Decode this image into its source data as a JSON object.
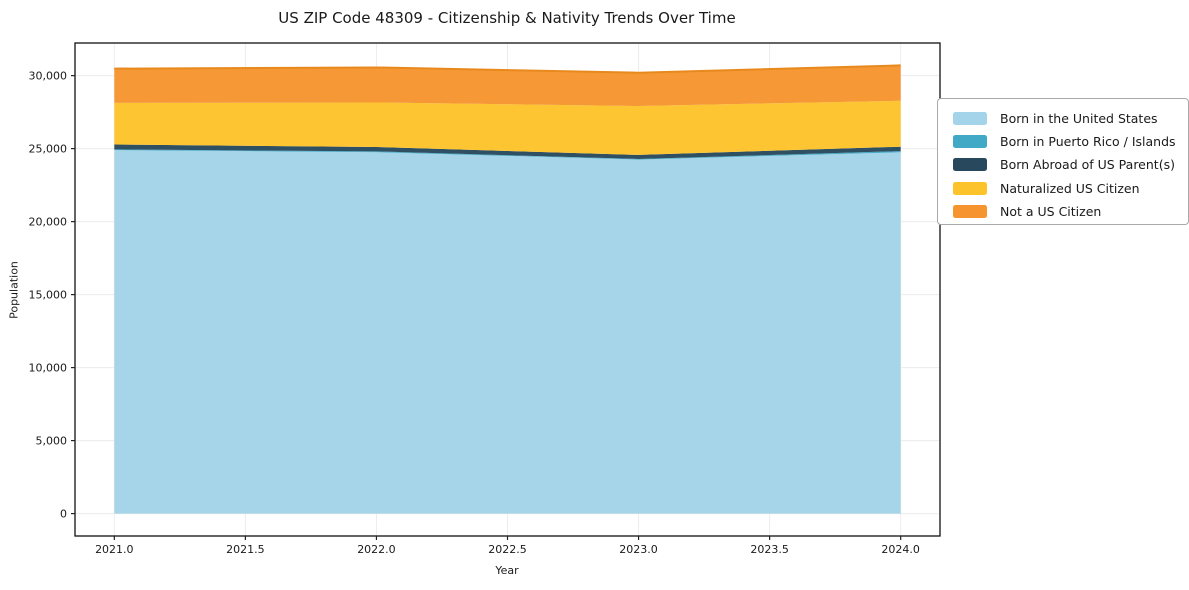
{
  "title": "US ZIP Code 48309 - Citizenship & Nativity Trends Over Time",
  "chart_data": {
    "type": "area",
    "stacked": true,
    "title": "US ZIP Code 48309 - Citizenship & Nativity Trends Over Time",
    "xlabel": "Year",
    "ylabel": "Population",
    "x": [
      2021,
      2022,
      2023,
      2024
    ],
    "series": [
      {
        "name": "Born in the United States",
        "color": "#A3D4E9",
        "values": [
          24900,
          24750,
          24250,
          24750
        ]
      },
      {
        "name": "Born in Puerto Rico / Islands",
        "color": "#41A9C6",
        "values": [
          50,
          60,
          40,
          80
        ]
      },
      {
        "name": "Born Abroad of US Parent(s)",
        "color": "#28495D",
        "values": [
          330,
          300,
          280,
          300
        ]
      },
      {
        "name": "Naturalized US Citizen",
        "color": "#FDC32B",
        "values": [
          2850,
          3050,
          3350,
          3150
        ]
      },
      {
        "name": "Not a US Citizen",
        "color": "#F6952F",
        "values": [
          2350,
          2400,
          2280,
          2420
        ]
      }
    ],
    "stack_totals": [
      30480,
      30560,
      30200,
      30700
    ],
    "xticks": {
      "values": [
        2021.0,
        2021.5,
        2022.0,
        2022.5,
        2023.0,
        2023.5,
        2024.0
      ],
      "labels": [
        "2021.0",
        "2021.5",
        "2022.0",
        "2022.5",
        "2023.0",
        "2023.5",
        "2024.0"
      ]
    },
    "yticks": {
      "values": [
        0,
        5000,
        10000,
        15000,
        20000,
        25000,
        30000
      ],
      "labels": [
        "0",
        "5,000",
        "10,000",
        "15,000",
        "20,000",
        "25,000",
        "30,000"
      ]
    },
    "xlim": [
      2020.85,
      2024.15
    ],
    "ylim": [
      -1535,
      32235
    ],
    "grid": true,
    "legend_position": "right-outside",
    "outer_edge_color": "#E8891D"
  }
}
